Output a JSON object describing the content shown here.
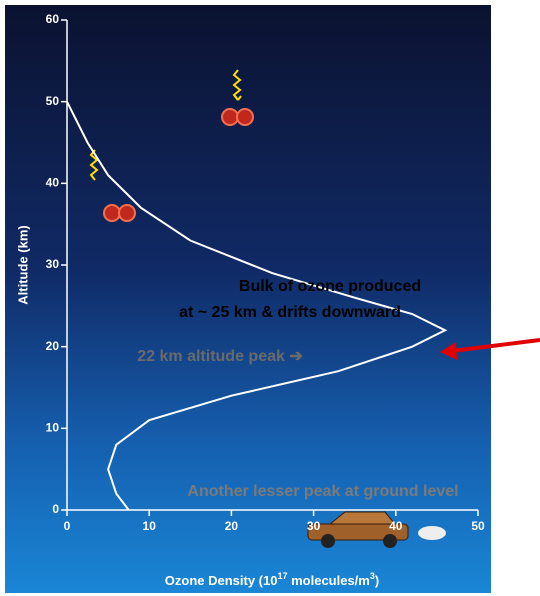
{
  "chart_data": {
    "type": "line",
    "ylabel": "Altitude (km)",
    "xlabel_parts": [
      "Ozone Density (10",
      "17",
      " molecules/m",
      "3",
      ")"
    ],
    "x": [
      7.5,
      6,
      5,
      6,
      10,
      20,
      33,
      42,
      46,
      42,
      35,
      25,
      15,
      9,
      5,
      2.5,
      1,
      0
    ],
    "values": [
      0,
      2,
      5,
      8,
      11,
      14,
      17,
      20,
      22,
      24,
      26,
      29,
      33,
      37,
      41,
      45,
      48,
      50
    ],
    "color": "#ffffff",
    "xlim": [
      0,
      50
    ],
    "xticks": [
      0,
      10,
      20,
      30,
      40,
      50
    ],
    "ylim": [
      0,
      60
    ],
    "yticks": [
      0,
      10,
      20,
      30,
      40,
      50,
      60
    ],
    "annotations": [
      "Bulk of ozone produced",
      "at ~ 25 km & drifts downward",
      "22 km altitude peak ➔",
      "Another lesser peak at ground level"
    ]
  }
}
